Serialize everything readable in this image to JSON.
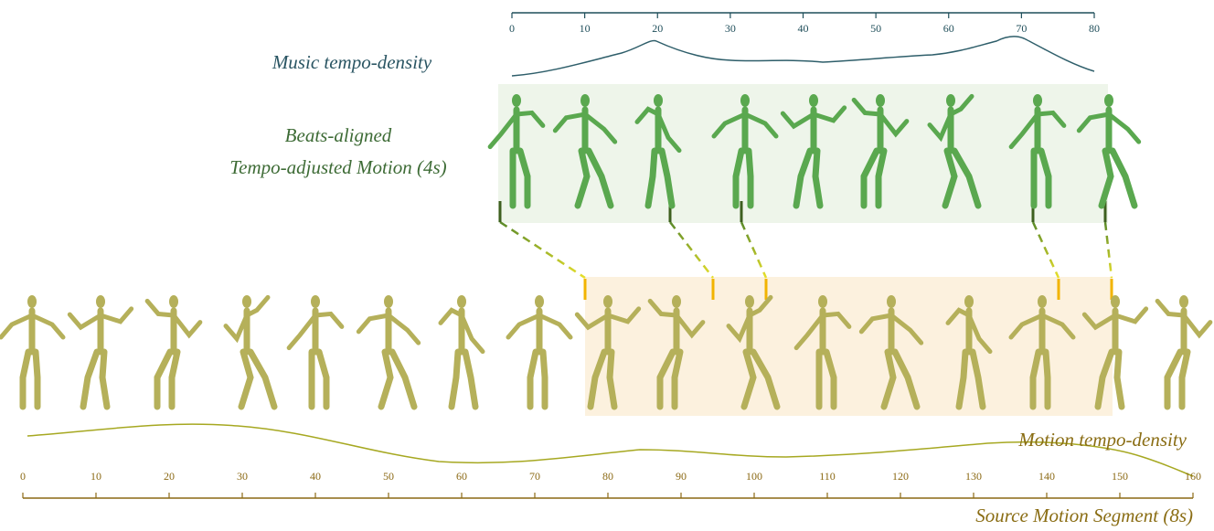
{
  "music_axis": {
    "label": "Music tempo-density",
    "range": [
      0,
      80
    ],
    "ticks": [
      0,
      10,
      20,
      30,
      40,
      50,
      60,
      70,
      80
    ]
  },
  "aligned_motion": {
    "lines": [
      "Beats-aligned",
      "Tempo-adjusted Motion (4s)"
    ]
  },
  "motion_axis": {
    "label": "Motion tempo-density",
    "range": [
      0,
      160
    ],
    "ticks": [
      0,
      10,
      20,
      30,
      40,
      50,
      60,
      70,
      80,
      90,
      100,
      110,
      120,
      130,
      140,
      150,
      160
    ]
  },
  "source_motion": {
    "label": "Source Motion Segment (8s)"
  }
}
